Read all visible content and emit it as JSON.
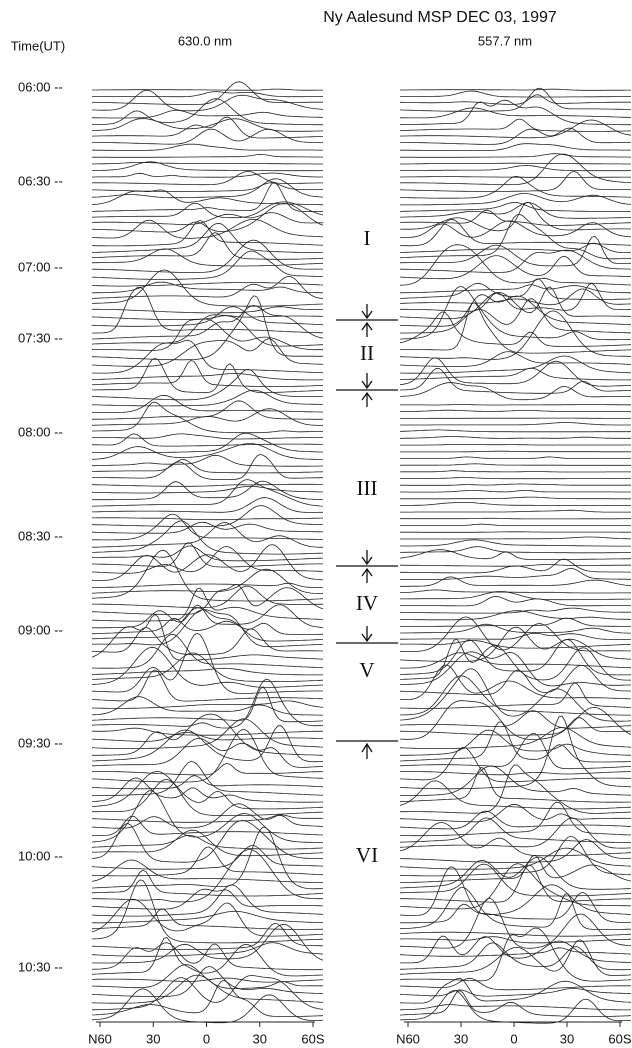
{
  "header": {
    "title": "Ny Aalesund MSP  DEC 03, 1997"
  },
  "time_axis": {
    "label": "Time(UT)",
    "ticks": [
      "06:00 --",
      "06:30 --",
      "07:00 --",
      "07:30 --",
      "08:00 --",
      "08:30 --",
      "09:00 --",
      "09:30 --",
      "10:00 --",
      "10:30 --"
    ]
  },
  "panels": [
    {
      "label": "630.0 nm",
      "ticks": [
        "N60",
        "30",
        "0",
        "30",
        "60S"
      ]
    },
    {
      "label": "557.7 nm",
      "ticks": [
        "N60",
        "30",
        "0",
        "30",
        "60S"
      ]
    }
  ],
  "regions": [
    "I",
    "II",
    "III",
    "IV",
    "V",
    "VI"
  ]
}
